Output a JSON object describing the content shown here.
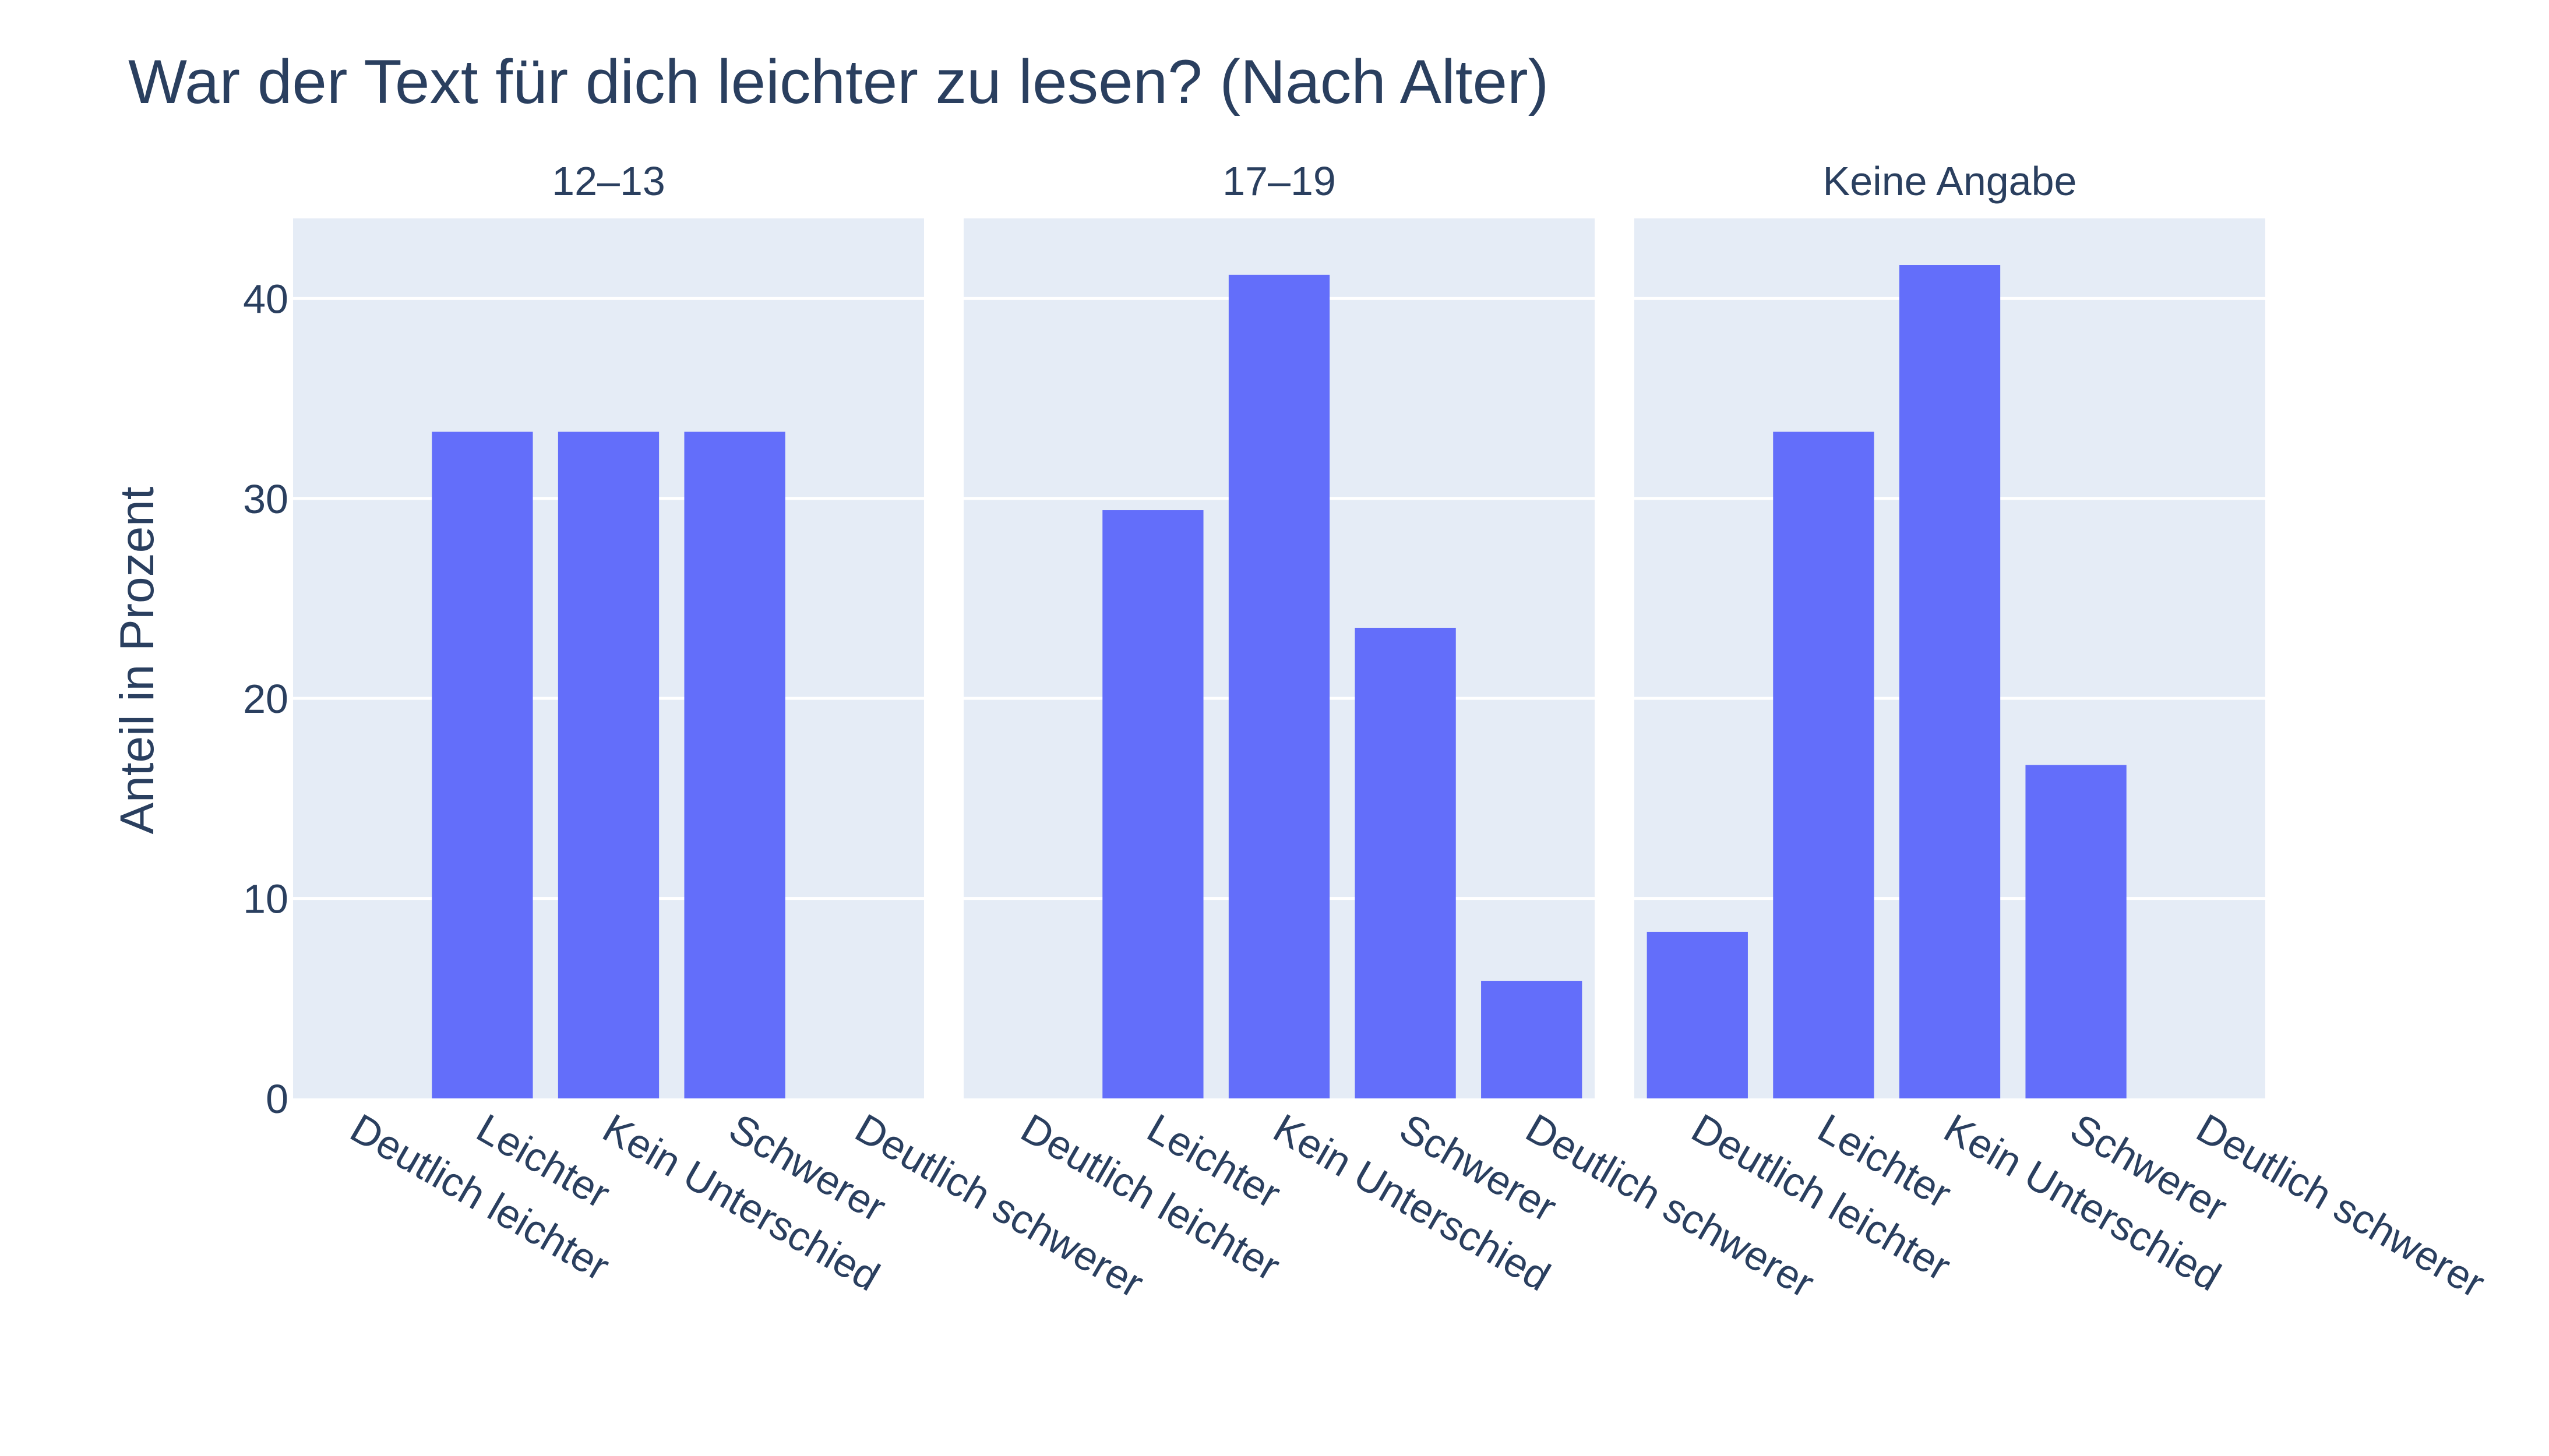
{
  "chart_data": {
    "type": "bar",
    "title": "War der Text für dich leichter zu lesen? (Nach Alter)",
    "ylabel": "Anteil in Prozent",
    "ylim": [
      0,
      44
    ],
    "yticks": [
      0,
      10,
      20,
      30,
      40
    ],
    "grid": true,
    "bar_color": "#636efa",
    "plot_bg": "#e5ecf6",
    "text_color": "#2a3f5f",
    "categories": [
      "Deutlich leichter",
      "Leichter",
      "Kein Unterschied",
      "Schwerer",
      "Deutlich schwerer"
    ],
    "panels": [
      {
        "name": "12–13",
        "values": [
          0,
          33.33,
          33.33,
          33.33,
          0
        ]
      },
      {
        "name": "17–19",
        "values": [
          0,
          29.41,
          41.18,
          23.53,
          5.88
        ]
      },
      {
        "name": "Keine Angabe",
        "values": [
          8.33,
          33.33,
          41.67,
          16.67,
          0
        ]
      }
    ]
  }
}
